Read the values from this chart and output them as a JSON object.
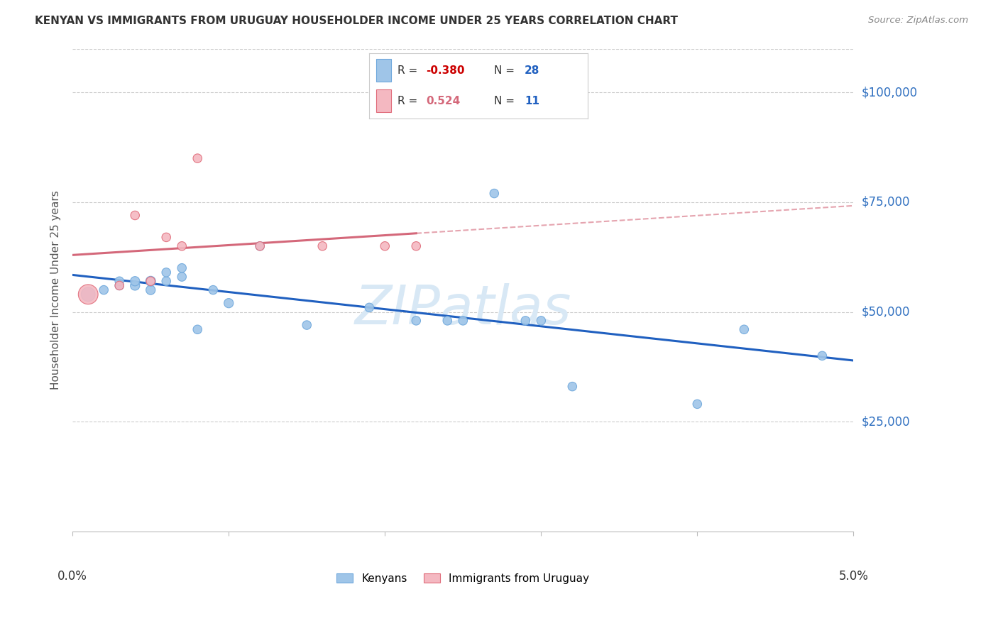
{
  "title": "KENYAN VS IMMIGRANTS FROM URUGUAY HOUSEHOLDER INCOME UNDER 25 YEARS CORRELATION CHART",
  "source": "Source: ZipAtlas.com",
  "ylabel": "Householder Income Under 25 years",
  "xlim": [
    0.0,
    0.05
  ],
  "ylim": [
    0,
    110000
  ],
  "yticks": [
    25000,
    50000,
    75000,
    100000
  ],
  "ytick_labels": [
    "$25,000",
    "$50,000",
    "$75,000",
    "$100,000"
  ],
  "xticks": [
    0.0,
    0.01,
    0.02,
    0.03,
    0.04,
    0.05
  ],
  "xtick_labels": [
    "0.0%",
    "",
    "",
    "",
    "",
    "5.0%"
  ],
  "kenyan_x": [
    0.001,
    0.002,
    0.003,
    0.003,
    0.004,
    0.004,
    0.005,
    0.005,
    0.006,
    0.006,
    0.007,
    0.007,
    0.008,
    0.009,
    0.01,
    0.012,
    0.015,
    0.019,
    0.022,
    0.024,
    0.025,
    0.027,
    0.029,
    0.03,
    0.032,
    0.04,
    0.043,
    0.048
  ],
  "kenyan_y": [
    54000,
    55000,
    56000,
    57000,
    56000,
    57000,
    55000,
    57000,
    57000,
    59000,
    58000,
    60000,
    46000,
    55000,
    52000,
    65000,
    47000,
    51000,
    48000,
    48000,
    48000,
    77000,
    48000,
    48000,
    33000,
    29000,
    46000,
    40000
  ],
  "kenyan_size": [
    200,
    80,
    80,
    80,
    90,
    90,
    90,
    100,
    80,
    80,
    80,
    80,
    80,
    80,
    90,
    80,
    80,
    80,
    80,
    80,
    80,
    80,
    80,
    80,
    80,
    80,
    80,
    80
  ],
  "uruguay_x": [
    0.001,
    0.003,
    0.004,
    0.005,
    0.006,
    0.007,
    0.008,
    0.012,
    0.016,
    0.02,
    0.022
  ],
  "uruguay_y": [
    54000,
    56000,
    72000,
    57000,
    67000,
    65000,
    85000,
    65000,
    65000,
    65000,
    65000
  ],
  "uruguay_size": [
    400,
    80,
    80,
    80,
    80,
    80,
    80,
    80,
    80,
    80,
    80
  ],
  "kenya_dot_color": "#9fc5e8",
  "kenya_dot_edge": "#6fa8dc",
  "uruguay_dot_color": "#f4b8c1",
  "uruguay_dot_edge": "#e06c7a",
  "kenya_line_color": "#2060c0",
  "uruguay_line_color": "#d4687a",
  "kenya_R": -0.38,
  "kenya_N": 28,
  "uruguay_R": 0.524,
  "uruguay_N": 11,
  "bg_color": "#ffffff",
  "watermark": "ZIPatlas",
  "watermark_color": "#d8e8f5",
  "grid_color": "#cccccc",
  "title_color": "#333333",
  "source_color": "#888888",
  "ylabel_color": "#555555",
  "tick_label_color_blue": "#3070c0",
  "legend_R_color": "#2060c0",
  "legend_N_color": "#2060c0",
  "legend_R_neg_color": "#cc0000",
  "legend_R_pos_color": "#d4687a"
}
